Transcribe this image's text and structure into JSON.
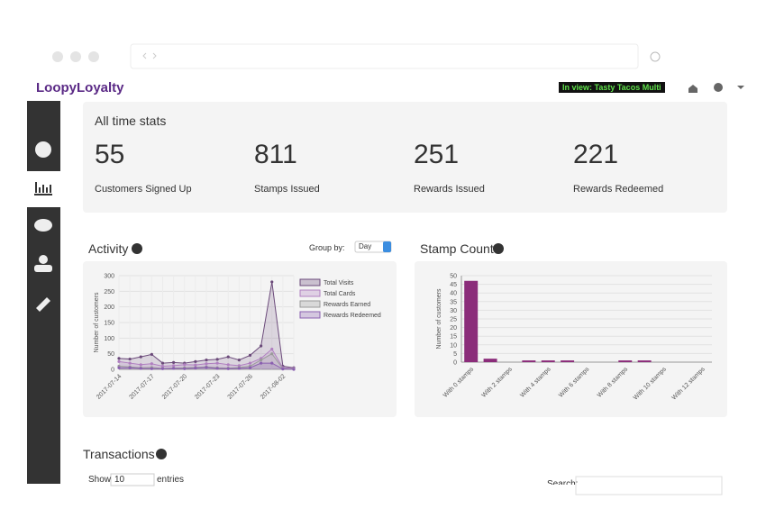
{
  "header": {
    "logo": "LoopyLoyalty",
    "badge": "In view: Tasty Tacos Multi"
  },
  "stats": {
    "title": "All time stats",
    "items": [
      {
        "value": 55,
        "label": "Customers Signed Up"
      },
      {
        "value": 811,
        "label": "Stamps Issued"
      },
      {
        "value": 251,
        "label": "Rewards Issued"
      },
      {
        "value": 221,
        "label": "Rewards Redeemed"
      }
    ]
  },
  "chart_data": [
    {
      "type": "line",
      "title": "Activity",
      "group_by_label": "Group by:",
      "group_by": "Day",
      "ylabel": "Number of customers",
      "categories": [
        "2017-07-14",
        null,
        null,
        "2017-07-17",
        null,
        null,
        "2017-07-20",
        null,
        null,
        "2017-07-23",
        null,
        null,
        "2017-07-26",
        null,
        null,
        "2017-08-02",
        null
      ],
      "series": [
        {
          "name": "Total Visits",
          "color": "#6b4a7a",
          "values": [
            35,
            33,
            40,
            48,
            20,
            22,
            20,
            25,
            30,
            32,
            40,
            30,
            45,
            75,
            280,
            10,
            5
          ]
        },
        {
          "name": "Total Cards",
          "color": "#b07fc0",
          "values": [
            25,
            20,
            15,
            18,
            10,
            12,
            15,
            14,
            18,
            20,
            15,
            12,
            20,
            35,
            65,
            5,
            3
          ]
        },
        {
          "name": "Rewards Earned",
          "color": "#9a9a9a",
          "values": [
            10,
            8,
            5,
            6,
            3,
            4,
            5,
            6,
            8,
            5,
            4,
            6,
            10,
            30,
            50,
            2,
            1
          ]
        },
        {
          "name": "Rewards Redeemed",
          "color": "#8a5fb0",
          "values": [
            5,
            5,
            3,
            2,
            2,
            3,
            2,
            4,
            6,
            3,
            2,
            3,
            5,
            20,
            20,
            1,
            0
          ]
        }
      ],
      "ylim": [
        0,
        300
      ],
      "yticks": [
        0,
        50,
        100,
        150,
        200,
        250,
        300
      ],
      "grid": true,
      "legend": "top-right"
    },
    {
      "type": "bar",
      "title": "Stamp Count",
      "ylabel": "Number of customers",
      "categories": [
        "With 0 stamps",
        null,
        "With 2 stamps",
        null,
        "With 4 stamps",
        null,
        "With 6 stamps",
        null,
        "With 8 stamps",
        null,
        "With 10 stamps",
        null,
        "With 12 stamps"
      ],
      "values": [
        47,
        2,
        0,
        1,
        1,
        1,
        0,
        0,
        1,
        1,
        0,
        0,
        0
      ],
      "color": "#8b2c7a",
      "ylim": [
        0,
        50
      ],
      "yticks": [
        0,
        5,
        10,
        15,
        20,
        25,
        30,
        35,
        40,
        45,
        50
      ],
      "grid": true
    }
  ],
  "transactions": {
    "title": "Transactions",
    "show": "Show",
    "page_size": "10",
    "entries": "entries",
    "search": "Search:"
  }
}
